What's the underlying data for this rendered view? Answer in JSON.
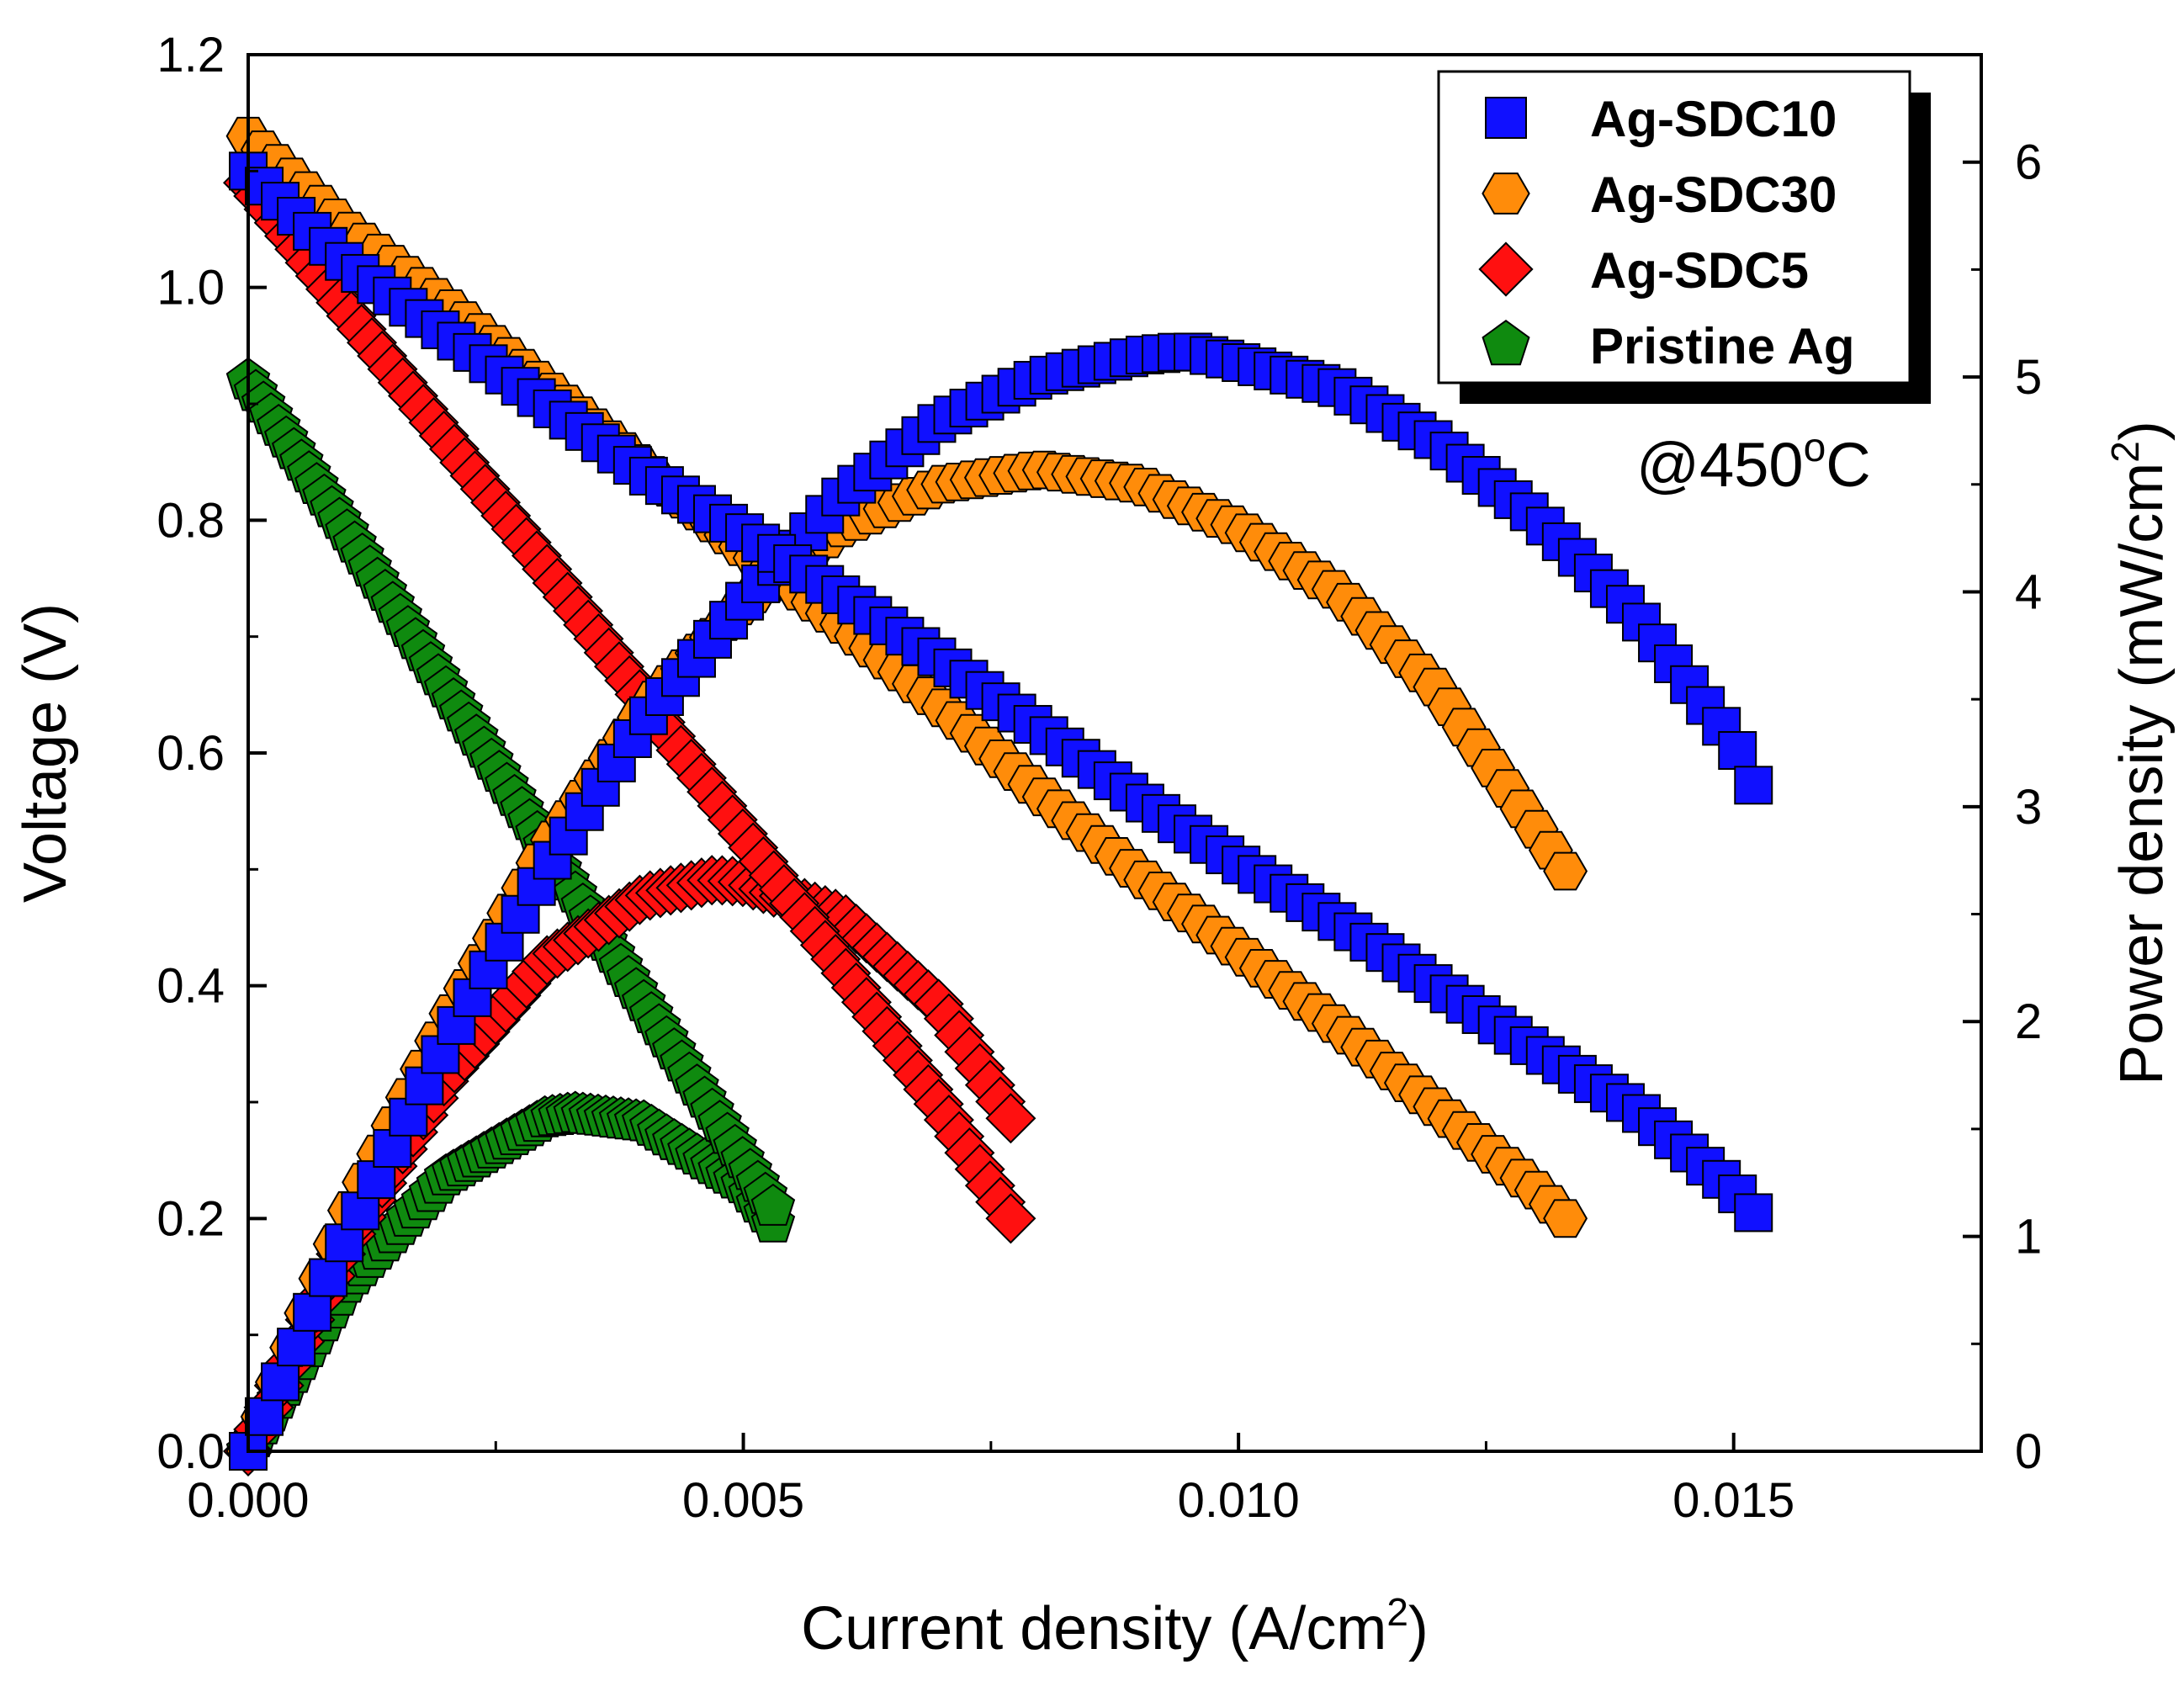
{
  "chart_data": {
    "type": "scatter",
    "title": "",
    "annotation": {
      "prefix": "@450",
      "sup": "o",
      "suffix": "C"
    },
    "x_axis": {
      "label": "Current density (A/cm",
      "label_sup": "2",
      "label_end": ")",
      "range": [
        0,
        0.0175
      ],
      "ticks": [
        0.0,
        0.005,
        0.01,
        0.015
      ],
      "tick_labels": [
        "0.000",
        "0.005",
        "0.010",
        "0.015"
      ]
    },
    "y_axis_left": {
      "label": "Voltage (V)",
      "range": [
        0,
        1.2
      ],
      "ticks": [
        0.0,
        0.2,
        0.4,
        0.6,
        0.8,
        1.0,
        1.2
      ],
      "tick_labels": [
        "0.0",
        "0.2",
        "0.4",
        "0.6",
        "0.8",
        "1.0",
        "1.2"
      ]
    },
    "y_axis_right": {
      "label": "Power density (mW/cm",
      "label_sup": "2",
      "label_end": ")",
      "range": [
        0,
        6.5
      ],
      "ticks": [
        0,
        1,
        2,
        3,
        4,
        5,
        6
      ],
      "tick_labels": [
        "0",
        "1",
        "2",
        "3",
        "4",
        "5",
        "6"
      ]
    },
    "legend": {
      "position": "top-right",
      "entries": [
        {
          "name": "Ag-SDC10",
          "marker": "square",
          "color": "#1010ff"
        },
        {
          "name": "Ag-SDC30",
          "marker": "hexagon",
          "color": "#ff8c0a"
        },
        {
          "name": "Ag-SDC5",
          "marker": "diamond",
          "color": "#ff1010"
        },
        {
          "name": "Pristine Ag",
          "marker": "pentagon",
          "color": "#0f8a0f"
        }
      ]
    },
    "series": [
      {
        "name": "Ag-SDC10",
        "curve": "voltage",
        "axis": "left",
        "marker": "square",
        "color": "#1010ff",
        "x_start": 0.0,
        "x_end": 0.0152,
        "n_points": 95,
        "shape": [
          [
            0.0,
            1.1
          ],
          [
            0.0005,
            1.06
          ],
          [
            0.001,
            1.02
          ],
          [
            0.002,
            0.96
          ],
          [
            0.003,
            0.9
          ],
          [
            0.004,
            0.84
          ],
          [
            0.005,
            0.79
          ],
          [
            0.006,
            0.735
          ],
          [
            0.007,
            0.68
          ],
          [
            0.008,
            0.62
          ],
          [
            0.009,
            0.56
          ],
          [
            0.01,
            0.505
          ],
          [
            0.011,
            0.455
          ],
          [
            0.012,
            0.4
          ],
          [
            0.013,
            0.345
          ],
          [
            0.014,
            0.295
          ],
          [
            0.015,
            0.225
          ],
          [
            0.0152,
            0.205
          ]
        ]
      },
      {
        "name": "Ag-SDC10",
        "curve": "power",
        "axis": "right",
        "marker": "square",
        "color": "#1010ff",
        "x_start": 0.0,
        "x_end": 0.0152,
        "n_points": 95,
        "shape": [
          [
            0.0,
            0.0
          ],
          [
            0.001,
            1.0
          ],
          [
            0.002,
            1.9
          ],
          [
            0.003,
            2.7
          ],
          [
            0.004,
            3.4
          ],
          [
            0.005,
            3.95
          ],
          [
            0.006,
            4.45
          ],
          [
            0.007,
            4.8
          ],
          [
            0.008,
            5.0
          ],
          [
            0.009,
            5.1
          ],
          [
            0.0095,
            5.12
          ],
          [
            0.01,
            5.07
          ],
          [
            0.011,
            4.95
          ],
          [
            0.012,
            4.7
          ],
          [
            0.013,
            4.35
          ],
          [
            0.014,
            3.9
          ],
          [
            0.015,
            3.3
          ],
          [
            0.0152,
            3.1
          ]
        ]
      },
      {
        "name": "Ag-SDC30",
        "curve": "voltage",
        "axis": "left",
        "marker": "hexagon",
        "color": "#ff8c0a",
        "x_start": 0.0,
        "x_end": 0.0133,
        "n_points": 92,
        "shape": [
          [
            0.0,
            1.13
          ],
          [
            0.001,
            1.05
          ],
          [
            0.002,
            0.985
          ],
          [
            0.003,
            0.915
          ],
          [
            0.004,
            0.845
          ],
          [
            0.005,
            0.775
          ],
          [
            0.006,
            0.71
          ],
          [
            0.007,
            0.64
          ],
          [
            0.008,
            0.565
          ],
          [
            0.009,
            0.495
          ],
          [
            0.01,
            0.43
          ],
          [
            0.011,
            0.365
          ],
          [
            0.012,
            0.295
          ],
          [
            0.013,
            0.225
          ],
          [
            0.0133,
            0.2
          ]
        ]
      },
      {
        "name": "Ag-SDC30",
        "curve": "power",
        "axis": "right",
        "marker": "hexagon",
        "color": "#ff8c0a",
        "x_start": 0.0,
        "x_end": 0.0133,
        "n_points": 92,
        "shape": [
          [
            0.0,
            0.0
          ],
          [
            0.001,
            1.1
          ],
          [
            0.002,
            2.0
          ],
          [
            0.003,
            2.8
          ],
          [
            0.004,
            3.45
          ],
          [
            0.005,
            3.95
          ],
          [
            0.006,
            4.3
          ],
          [
            0.007,
            4.5
          ],
          [
            0.008,
            4.57
          ],
          [
            0.009,
            4.5
          ],
          [
            0.01,
            4.3
          ],
          [
            0.011,
            4.0
          ],
          [
            0.012,
            3.55
          ],
          [
            0.013,
            2.9
          ],
          [
            0.0133,
            2.7
          ]
        ]
      },
      {
        "name": "Ag-SDC5",
        "curve": "voltage",
        "axis": "left",
        "marker": "diamond",
        "color": "#ff1010",
        "x_start": 0.0,
        "x_end": 0.0077,
        "n_points": 75,
        "shape": [
          [
            0.0,
            1.09
          ],
          [
            0.001,
            0.98
          ],
          [
            0.002,
            0.87
          ],
          [
            0.003,
            0.76
          ],
          [
            0.004,
            0.645
          ],
          [
            0.005,
            0.53
          ],
          [
            0.006,
            0.415
          ],
          [
            0.007,
            0.295
          ],
          [
            0.0077,
            0.2
          ]
        ]
      },
      {
        "name": "Ag-SDC5",
        "curve": "power",
        "axis": "right",
        "marker": "diamond",
        "color": "#ff1010",
        "x_start": 0.0,
        "x_end": 0.0077,
        "n_points": 75,
        "shape": [
          [
            0.0,
            0.0
          ],
          [
            0.001,
            0.98
          ],
          [
            0.002,
            1.74
          ],
          [
            0.003,
            2.28
          ],
          [
            0.004,
            2.58
          ],
          [
            0.0047,
            2.66
          ],
          [
            0.005,
            2.65
          ],
          [
            0.006,
            2.49
          ],
          [
            0.007,
            2.07
          ],
          [
            0.0077,
            1.55
          ]
        ]
      },
      {
        "name": "Pristine Ag",
        "curve": "voltage",
        "axis": "left",
        "marker": "pentagon",
        "color": "#0f8a0f",
        "x_start": 0.0,
        "x_end": 0.0053,
        "n_points": 70,
        "shape": [
          [
            0.0,
            0.92
          ],
          [
            0.001,
            0.79
          ],
          [
            0.002,
            0.655
          ],
          [
            0.003,
            0.52
          ],
          [
            0.004,
            0.385
          ],
          [
            0.005,
            0.25
          ],
          [
            0.0053,
            0.21
          ]
        ]
      },
      {
        "name": "Pristine Ag",
        "curve": "power",
        "axis": "right",
        "marker": "pentagon",
        "color": "#0f8a0f",
        "x_start": 0.0,
        "x_end": 0.0053,
        "n_points": 70,
        "shape": [
          [
            0.0,
            0.0
          ],
          [
            0.001,
            0.78
          ],
          [
            0.002,
            1.28
          ],
          [
            0.003,
            1.55
          ],
          [
            0.0033,
            1.57
          ],
          [
            0.004,
            1.53
          ],
          [
            0.005,
            1.24
          ],
          [
            0.0053,
            1.06
          ]
        ]
      }
    ]
  }
}
